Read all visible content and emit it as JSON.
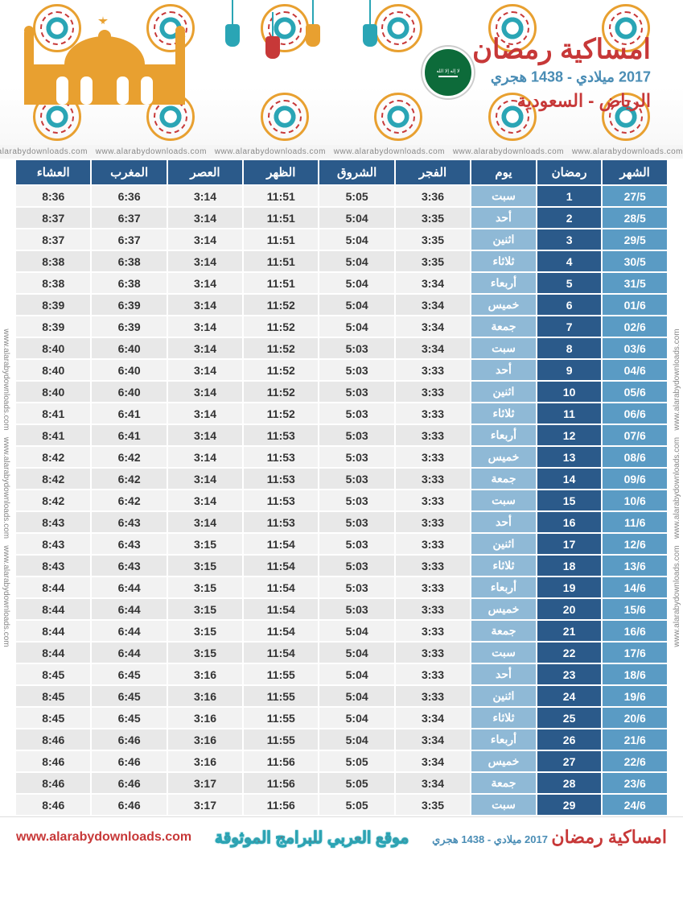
{
  "header": {
    "title": "امساكية رمضان",
    "subtitle": "2017 ميلادي - 1438 هجري",
    "location": "الرياض - السعودية",
    "flag_label": "🇸🇦"
  },
  "watermark": "www.alarabydownloads.com",
  "columns": [
    "الشهر",
    "رمضان",
    "يوم",
    "الفجر",
    "الشروق",
    "الظهر",
    "العصر",
    "المغرب",
    "العشاء"
  ],
  "colors": {
    "header_bg": "#2b5a8a",
    "month_bg": "#5a9bc4",
    "ramadan_bg": "#2b5a8a",
    "day_bg": "#8fb9d6",
    "time_bg_odd": "#f2f2f2",
    "time_bg_even": "#e8e8e8",
    "title_color": "#c73838",
    "sub_color": "#4a8db5"
  },
  "rows": [
    {
      "month": "27/5",
      "ramadan": "1",
      "day": "سبت",
      "fajr": "3:36",
      "shuruq": "5:05",
      "dhuhr": "11:51",
      "asr": "3:14",
      "maghrib": "6:36",
      "isha": "8:36"
    },
    {
      "month": "28/5",
      "ramadan": "2",
      "day": "أحد",
      "fajr": "3:35",
      "shuruq": "5:04",
      "dhuhr": "11:51",
      "asr": "3:14",
      "maghrib": "6:37",
      "isha": "8:37"
    },
    {
      "month": "29/5",
      "ramadan": "3",
      "day": "اثنين",
      "fajr": "3:35",
      "shuruq": "5:04",
      "dhuhr": "11:51",
      "asr": "3:14",
      "maghrib": "6:37",
      "isha": "8:37"
    },
    {
      "month": "30/5",
      "ramadan": "4",
      "day": "ثلاثاء",
      "fajr": "3:35",
      "shuruq": "5:04",
      "dhuhr": "11:51",
      "asr": "3:14",
      "maghrib": "6:38",
      "isha": "8:38"
    },
    {
      "month": "31/5",
      "ramadan": "5",
      "day": "أربعاء",
      "fajr": "3:34",
      "shuruq": "5:04",
      "dhuhr": "11:51",
      "asr": "3:14",
      "maghrib": "6:38",
      "isha": "8:38"
    },
    {
      "month": "01/6",
      "ramadan": "6",
      "day": "خميس",
      "fajr": "3:34",
      "shuruq": "5:04",
      "dhuhr": "11:52",
      "asr": "3:14",
      "maghrib": "6:39",
      "isha": "8:39"
    },
    {
      "month": "02/6",
      "ramadan": "7",
      "day": "جمعة",
      "fajr": "3:34",
      "shuruq": "5:04",
      "dhuhr": "11:52",
      "asr": "3:14",
      "maghrib": "6:39",
      "isha": "8:39"
    },
    {
      "month": "03/6",
      "ramadan": "8",
      "day": "سبت",
      "fajr": "3:34",
      "shuruq": "5:03",
      "dhuhr": "11:52",
      "asr": "3:14",
      "maghrib": "6:40",
      "isha": "8:40"
    },
    {
      "month": "04/6",
      "ramadan": "9",
      "day": "أحد",
      "fajr": "3:33",
      "shuruq": "5:03",
      "dhuhr": "11:52",
      "asr": "3:14",
      "maghrib": "6:40",
      "isha": "8:40"
    },
    {
      "month": "05/6",
      "ramadan": "10",
      "day": "اثنين",
      "fajr": "3:33",
      "shuruq": "5:03",
      "dhuhr": "11:52",
      "asr": "3:14",
      "maghrib": "6:40",
      "isha": "8:40"
    },
    {
      "month": "06/6",
      "ramadan": "11",
      "day": "ثلاثاء",
      "fajr": "3:33",
      "shuruq": "5:03",
      "dhuhr": "11:52",
      "asr": "3:14",
      "maghrib": "6:41",
      "isha": "8:41"
    },
    {
      "month": "07/6",
      "ramadan": "12",
      "day": "أربعاء",
      "fajr": "3:33",
      "shuruq": "5:03",
      "dhuhr": "11:53",
      "asr": "3:14",
      "maghrib": "6:41",
      "isha": "8:41"
    },
    {
      "month": "08/6",
      "ramadan": "13",
      "day": "خميس",
      "fajr": "3:33",
      "shuruq": "5:03",
      "dhuhr": "11:53",
      "asr": "3:14",
      "maghrib": "6:42",
      "isha": "8:42"
    },
    {
      "month": "09/6",
      "ramadan": "14",
      "day": "جمعة",
      "fajr": "3:33",
      "shuruq": "5:03",
      "dhuhr": "11:53",
      "asr": "3:14",
      "maghrib": "6:42",
      "isha": "8:42"
    },
    {
      "month": "10/6",
      "ramadan": "15",
      "day": "سبت",
      "fajr": "3:33",
      "shuruq": "5:03",
      "dhuhr": "11:53",
      "asr": "3:14",
      "maghrib": "6:42",
      "isha": "8:42"
    },
    {
      "month": "11/6",
      "ramadan": "16",
      "day": "أحد",
      "fajr": "3:33",
      "shuruq": "5:03",
      "dhuhr": "11:53",
      "asr": "3:14",
      "maghrib": "6:43",
      "isha": "8:43"
    },
    {
      "month": "12/6",
      "ramadan": "17",
      "day": "اثنين",
      "fajr": "3:33",
      "shuruq": "5:03",
      "dhuhr": "11:54",
      "asr": "3:15",
      "maghrib": "6:43",
      "isha": "8:43"
    },
    {
      "month": "13/6",
      "ramadan": "18",
      "day": "ثلاثاء",
      "fajr": "3:33",
      "shuruq": "5:03",
      "dhuhr": "11:54",
      "asr": "3:15",
      "maghrib": "6:43",
      "isha": "8:43"
    },
    {
      "month": "14/6",
      "ramadan": "19",
      "day": "أربعاء",
      "fajr": "3:33",
      "shuruq": "5:03",
      "dhuhr": "11:54",
      "asr": "3:15",
      "maghrib": "6:44",
      "isha": "8:44"
    },
    {
      "month": "15/6",
      "ramadan": "20",
      "day": "خميس",
      "fajr": "3:33",
      "shuruq": "5:03",
      "dhuhr": "11:54",
      "asr": "3:15",
      "maghrib": "6:44",
      "isha": "8:44"
    },
    {
      "month": "16/6",
      "ramadan": "21",
      "day": "جمعة",
      "fajr": "3:33",
      "shuruq": "5:04",
      "dhuhr": "11:54",
      "asr": "3:15",
      "maghrib": "6:44",
      "isha": "8:44"
    },
    {
      "month": "17/6",
      "ramadan": "22",
      "day": "سبت",
      "fajr": "3:33",
      "shuruq": "5:04",
      "dhuhr": "11:54",
      "asr": "3:15",
      "maghrib": "6:44",
      "isha": "8:44"
    },
    {
      "month": "18/6",
      "ramadan": "23",
      "day": "أحد",
      "fajr": "3:33",
      "shuruq": "5:04",
      "dhuhr": "11:55",
      "asr": "3:16",
      "maghrib": "6:45",
      "isha": "8:45"
    },
    {
      "month": "19/6",
      "ramadan": "24",
      "day": "اثنين",
      "fajr": "3:33",
      "shuruq": "5:04",
      "dhuhr": "11:55",
      "asr": "3:16",
      "maghrib": "6:45",
      "isha": "8:45"
    },
    {
      "month": "20/6",
      "ramadan": "25",
      "day": "ثلاثاء",
      "fajr": "3:34",
      "shuruq": "5:04",
      "dhuhr": "11:55",
      "asr": "3:16",
      "maghrib": "6:45",
      "isha": "8:45"
    },
    {
      "month": "21/6",
      "ramadan": "26",
      "day": "أربعاء",
      "fajr": "3:34",
      "shuruq": "5:04",
      "dhuhr": "11:55",
      "asr": "3:16",
      "maghrib": "6:46",
      "isha": "8:46"
    },
    {
      "month": "22/6",
      "ramadan": "27",
      "day": "خميس",
      "fajr": "3:34",
      "shuruq": "5:05",
      "dhuhr": "11:56",
      "asr": "3:16",
      "maghrib": "6:46",
      "isha": "8:46"
    },
    {
      "month": "23/6",
      "ramadan": "28",
      "day": "جمعة",
      "fajr": "3:34",
      "shuruq": "5:05",
      "dhuhr": "11:56",
      "asr": "3:17",
      "maghrib": "6:46",
      "isha": "8:46"
    },
    {
      "month": "24/6",
      "ramadan": "29",
      "day": "سبت",
      "fajr": "3:35",
      "shuruq": "5:05",
      "dhuhr": "11:56",
      "asr": "3:17",
      "maghrib": "6:46",
      "isha": "8:46"
    }
  ],
  "footer": {
    "title": "امساكية رمضان",
    "subtitle": "2017 ميلادي - 1438 هجري",
    "mid": "موقع العربي للبرامج الموثوقة",
    "url": "www.alarabydownloads.com"
  }
}
